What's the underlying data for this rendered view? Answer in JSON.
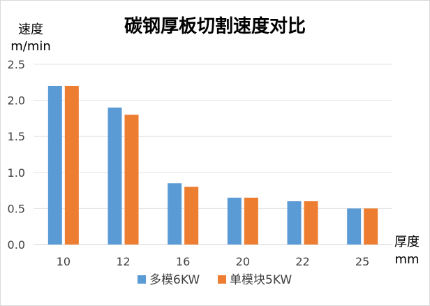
{
  "chart_data": {
    "type": "bar",
    "title": "碳钢厚板切割速度对比",
    "ylabel": "速度 m/min",
    "ylabel_lines": [
      "速度",
      "m/min"
    ],
    "xlabel": "厚度 mm",
    "xlabel_lines": [
      "厚度",
      "mm"
    ],
    "categories": [
      "10",
      "12",
      "16",
      "20",
      "22",
      "25"
    ],
    "ylim": [
      0,
      2.5
    ],
    "yticks": [
      "0.0",
      "0.5",
      "1.0",
      "1.5",
      "2.0",
      "2.5"
    ],
    "grid": true,
    "legend_position": "bottom",
    "series": [
      {
        "name": "多模6KW",
        "color": "#5b9bd5",
        "values": [
          2.2,
          1.9,
          0.85,
          0.65,
          0.6,
          0.5
        ]
      },
      {
        "name": "单模块5KW",
        "color": "#ed7d31",
        "values": [
          2.2,
          1.8,
          0.8,
          0.65,
          0.6,
          0.5
        ]
      }
    ]
  }
}
